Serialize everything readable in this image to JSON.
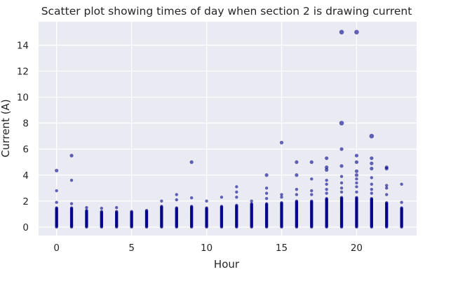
{
  "chart_data": {
    "type": "scatter",
    "title": "Scatter plot showing times of day when section 2 is drawing current",
    "xlabel": "Hour",
    "ylabel": "Current (A)",
    "xlim": [
      -1.2,
      24
    ],
    "ylim": [
      -0.65,
      15.8
    ],
    "xticks": [
      0,
      5,
      10,
      15,
      20
    ],
    "yticks": [
      0,
      2,
      4,
      6,
      8,
      10,
      12,
      14
    ],
    "grid": true,
    "background": "#eaeaf2",
    "grid_color": "#ffffff",
    "marker_color": "#00008b",
    "base_max": [
      1.5,
      1.5,
      1.3,
      1.2,
      1.2,
      1.2,
      1.3,
      1.6,
      1.5,
      1.6,
      1.5,
      1.6,
      1.7,
      1.8,
      1.8,
      1.9,
      2.0,
      2.0,
      2.2,
      2.3,
      2.3,
      2.2,
      1.9,
      1.5
    ],
    "outliers": [
      {
        "x": 0,
        "y": 4.35
      },
      {
        "x": 0,
        "y": 2.8
      },
      {
        "x": 0,
        "y": 1.9
      },
      {
        "x": 1,
        "y": 5.5
      },
      {
        "x": 1,
        "y": 3.6
      },
      {
        "x": 1,
        "y": 1.8
      },
      {
        "x": 2,
        "y": 1.5
      },
      {
        "x": 3,
        "y": 1.45
      },
      {
        "x": 4,
        "y": 1.5
      },
      {
        "x": 7,
        "y": 2.0
      },
      {
        "x": 8,
        "y": 2.5
      },
      {
        "x": 8,
        "y": 2.1
      },
      {
        "x": 9,
        "y": 5.0
      },
      {
        "x": 9,
        "y": 2.25
      },
      {
        "x": 10,
        "y": 2.0
      },
      {
        "x": 11,
        "y": 2.3
      },
      {
        "x": 12,
        "y": 3.1
      },
      {
        "x": 12,
        "y": 2.7
      },
      {
        "x": 12,
        "y": 2.3
      },
      {
        "x": 13,
        "y": 2.0
      },
      {
        "x": 14,
        "y": 4.0
      },
      {
        "x": 14,
        "y": 3.0
      },
      {
        "x": 14,
        "y": 2.6
      },
      {
        "x": 14,
        "y": 2.2
      },
      {
        "x": 15,
        "y": 6.5
      },
      {
        "x": 15,
        "y": 2.5
      },
      {
        "x": 15,
        "y": 2.3
      },
      {
        "x": 16,
        "y": 5.0
      },
      {
        "x": 16,
        "y": 4.0
      },
      {
        "x": 16,
        "y": 2.9
      },
      {
        "x": 16,
        "y": 2.5
      },
      {
        "x": 17,
        "y": 5.0
      },
      {
        "x": 17,
        "y": 3.7
      },
      {
        "x": 17,
        "y": 2.8
      },
      {
        "x": 17,
        "y": 2.5
      },
      {
        "x": 18,
        "y": 5.3
      },
      {
        "x": 18,
        "y": 4.6
      },
      {
        "x": 18,
        "y": 4.4
      },
      {
        "x": 18,
        "y": 3.6
      },
      {
        "x": 18,
        "y": 3.3
      },
      {
        "x": 18,
        "y": 2.9
      },
      {
        "x": 18,
        "y": 2.6
      },
      {
        "x": 19,
        "y": 15.0
      },
      {
        "x": 19,
        "y": 8.0
      },
      {
        "x": 19,
        "y": 6.0
      },
      {
        "x": 19,
        "y": 4.7
      },
      {
        "x": 19,
        "y": 3.9
      },
      {
        "x": 19,
        "y": 3.4
      },
      {
        "x": 19,
        "y": 3.0
      },
      {
        "x": 19,
        "y": 2.7
      },
      {
        "x": 20,
        "y": 15.0
      },
      {
        "x": 20,
        "y": 5.5
      },
      {
        "x": 20,
        "y": 5.0
      },
      {
        "x": 20,
        "y": 4.3
      },
      {
        "x": 20,
        "y": 4.0
      },
      {
        "x": 20,
        "y": 3.7
      },
      {
        "x": 20,
        "y": 3.4
      },
      {
        "x": 20,
        "y": 3.1
      },
      {
        "x": 20,
        "y": 2.7
      },
      {
        "x": 21,
        "y": 7.0
      },
      {
        "x": 21,
        "y": 5.3
      },
      {
        "x": 21,
        "y": 4.9
      },
      {
        "x": 21,
        "y": 4.5
      },
      {
        "x": 21,
        "y": 3.8
      },
      {
        "x": 21,
        "y": 3.3
      },
      {
        "x": 21,
        "y": 2.9
      },
      {
        "x": 21,
        "y": 2.6
      },
      {
        "x": 22,
        "y": 4.6
      },
      {
        "x": 22,
        "y": 4.5
      },
      {
        "x": 22,
        "y": 3.2
      },
      {
        "x": 22,
        "y": 3.0
      },
      {
        "x": 22,
        "y": 2.5
      },
      {
        "x": 23,
        "y": 3.3
      },
      {
        "x": 23,
        "y": 1.9
      }
    ]
  }
}
